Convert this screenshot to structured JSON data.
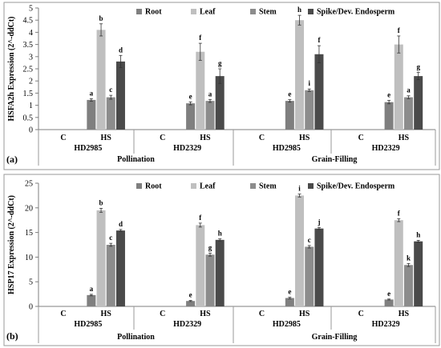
{
  "colors": {
    "Root": "#7f7f7f",
    "Leaf": "#bfbfbf",
    "Stem": "#8c8c8c",
    "Spike": "#4a4a4a"
  },
  "chart_data": [
    {
      "type": "bar",
      "panel_label": "(a)",
      "ylabel": "HSFA2h Expression (2^-ddCt)",
      "ylim": [
        0,
        5
      ],
      "yticks": [
        "0",
        "0.5",
        "1",
        "1.5",
        "2",
        "2.5",
        "3",
        "3.5",
        "4",
        "4.5",
        "5"
      ],
      "legend": [
        "Root",
        "Leaf",
        "Stem",
        "Spike/Dev. Endosperm"
      ],
      "legend_position": "top",
      "groups": [
        {
          "variety": "HD2985",
          "stage": "Pollination"
        },
        {
          "variety": "HD2329",
          "stage": "Pollination"
        },
        {
          "variety": "HD2985",
          "stage": "Grain-Filling"
        },
        {
          "variety": "HD2329",
          "stage": "Grain-Filling"
        }
      ],
      "stages": [
        "Pollination",
        "Grain-Filling"
      ],
      "treatments": [
        "C",
        "HS"
      ],
      "series": [
        {
          "name": "Root",
          "values": [
            1.22,
            1.08,
            1.18,
            1.13
          ],
          "errors": [
            0.05,
            0.06,
            0.05,
            0.07
          ],
          "letters": [
            "a",
            "e",
            "e",
            "e"
          ]
        },
        {
          "name": "Leaf",
          "values": [
            4.1,
            3.2,
            4.5,
            3.5
          ],
          "errors": [
            0.25,
            0.35,
            0.2,
            0.35
          ],
          "letters": [
            "b",
            "f",
            "h",
            "f"
          ]
        },
        {
          "name": "Stem",
          "values": [
            1.33,
            1.18,
            1.62,
            1.33
          ],
          "errors": [
            0.08,
            0.06,
            0.05,
            0.06
          ],
          "letters": [
            "c",
            "a",
            "i",
            "a"
          ]
        },
        {
          "name": "Spike/Dev. Endosperm",
          "values": [
            2.8,
            2.2,
            3.1,
            2.2
          ],
          "errors": [
            0.25,
            0.3,
            0.35,
            0.15
          ],
          "letters": [
            "d",
            "g",
            "f",
            "g"
          ]
        }
      ]
    },
    {
      "type": "bar",
      "panel_label": "(b)",
      "ylabel": "HSP17 Expression (2^-ddCt)",
      "ylim": [
        0,
        25
      ],
      "yticks": [
        "0",
        "5",
        "10",
        "15",
        "20",
        "25"
      ],
      "legend": [
        "Root",
        "Leaf",
        "Stem",
        "Spike/Dev. Endosperm"
      ],
      "legend_position": "top",
      "groups": [
        {
          "variety": "HD2985",
          "stage": "Pollination"
        },
        {
          "variety": "HD2329",
          "stage": "Pollination"
        },
        {
          "variety": "HD2985",
          "stage": "Grain-Filling"
        },
        {
          "variety": "HD2329",
          "stage": "Grain-Filling"
        }
      ],
      "stages": [
        "Pollination",
        "Grain-Filling"
      ],
      "treatments": [
        "C",
        "HS"
      ],
      "series": [
        {
          "name": "Root",
          "values": [
            2.3,
            1.1,
            1.7,
            1.4
          ],
          "errors": [
            0.15,
            0.1,
            0.15,
            0.1
          ],
          "letters": [
            "a",
            "e",
            "e",
            "e"
          ]
        },
        {
          "name": "Leaf",
          "values": [
            19.5,
            16.5,
            22.5,
            17.5
          ],
          "errors": [
            0.4,
            0.4,
            0.3,
            0.3
          ],
          "letters": [
            "b",
            "f",
            "i",
            "f"
          ]
        },
        {
          "name": "Stem",
          "values": [
            12.5,
            10.5,
            12.1,
            8.4
          ],
          "errors": [
            0.3,
            0.3,
            0.25,
            0.3
          ],
          "letters": [
            "c",
            "g",
            "c",
            "k"
          ]
        },
        {
          "name": "Spike/Dev. Endosperm",
          "values": [
            15.4,
            13.5,
            15.8,
            13.2
          ],
          "errors": [
            0.2,
            0.2,
            0.2,
            0.2
          ],
          "letters": [
            "d",
            "h",
            "j",
            "h"
          ]
        }
      ]
    }
  ]
}
